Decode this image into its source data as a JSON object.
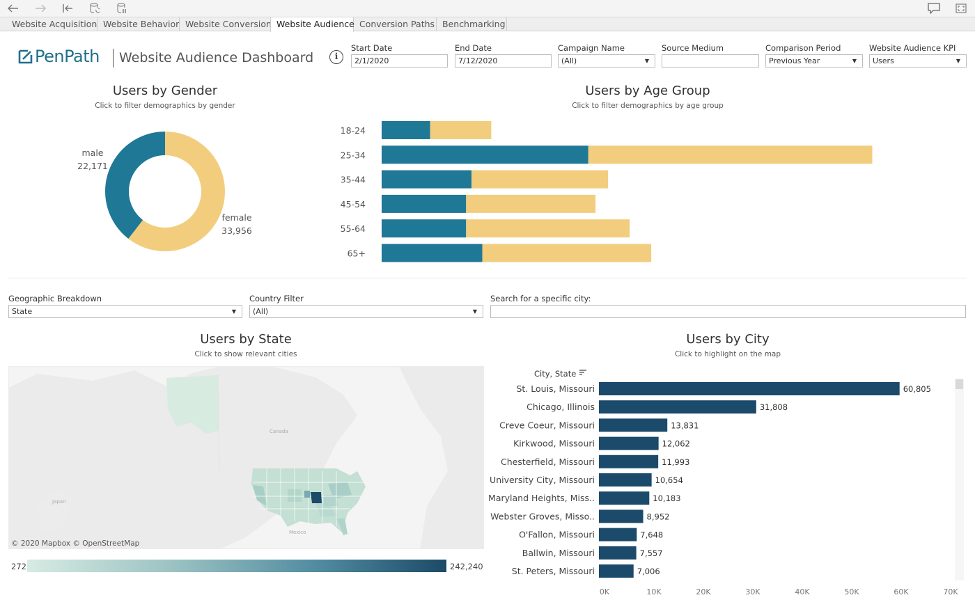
{
  "toolbar": {
    "back_icon": "back-arrow-icon",
    "forward_icon": "forward-arrow-icon",
    "revert_icon": "revert-icon",
    "refresh_icon": "refresh-data-icon",
    "pause_icon": "pause-updates-icon",
    "comment_icon": "comment-icon",
    "fullscreen_icon": "fullscreen-icon"
  },
  "tabs": [
    {
      "label": "Website Acquisition",
      "active": false
    },
    {
      "label": "Website Behavior",
      "active": false
    },
    {
      "label": "Website Conversion",
      "active": false
    },
    {
      "label": "Website Audience",
      "active": true
    },
    {
      "label": "Conversion Paths",
      "active": false
    },
    {
      "label": "Benchmarking",
      "active": false
    }
  ],
  "header": {
    "logo_text": "PenPath",
    "title": "Website Audience Dashboard"
  },
  "filters": {
    "start_date": {
      "label": "Start Date",
      "value": "2/1/2020"
    },
    "end_date": {
      "label": "End Date",
      "value": "7/12/2020"
    },
    "campaign": {
      "label": "Campaign Name",
      "value": "(All)"
    },
    "source_medium": {
      "label": "Source Medium",
      "value": ""
    },
    "comparison": {
      "label": "Comparison Period",
      "value": "Previous Year"
    },
    "kpi": {
      "label": "Website Audience KPI",
      "value": "Users"
    },
    "geo": {
      "label": "Geographic Breakdown",
      "value": "State"
    },
    "country": {
      "label": "Country Filter",
      "value": "(All)"
    },
    "city_search": {
      "label": "Search for a specific city:",
      "value": ""
    }
  },
  "gender": {
    "title": "Users by Gender",
    "subtitle": "Click to filter demographics by gender"
  },
  "age": {
    "title": "Users by Age Group",
    "subtitle": "Click to filter demographics by age group"
  },
  "state": {
    "title": "Users by State",
    "subtitle": "Click to show relevant cities",
    "map_labels": [
      "Canada",
      "Japan",
      "Mexico"
    ],
    "credit": "© 2020 Mapbox  © OpenStreetMap",
    "legend_min": "272",
    "legend_max": "242,240"
  },
  "city": {
    "title": "Users by City",
    "subtitle": "Click to highlight on the map",
    "column_header": "City, State",
    "sort_icon": "sort-icon"
  },
  "colors": {
    "teal": "#1f7896",
    "gold": "#f2cd7e",
    "navy": "#1b4a6b",
    "brand": "#1f6f8b"
  },
  "chart_data": [
    {
      "type": "pie",
      "title": "Users by Gender",
      "categories": [
        "male",
        "female"
      ],
      "values": [
        22171,
        33956
      ],
      "value_labels": [
        "22,171",
        "33,956"
      ]
    },
    {
      "type": "bar",
      "orientation": "horizontal",
      "stacked": true,
      "title": "Users by Age Group",
      "categories": [
        "18-24",
        "25-34",
        "35-44",
        "45-54",
        "55-64",
        "65+"
      ],
      "series": [
        {
          "name": "male",
          "values": [
            2700,
            11500,
            5000,
            4700,
            4700,
            5600
          ]
        },
        {
          "name": "female",
          "values": [
            3400,
            15800,
            7600,
            7200,
            9100,
            9400
          ]
        }
      ],
      "xlim": [
        0,
        31000
      ]
    },
    {
      "type": "bar",
      "orientation": "horizontal",
      "title": "Users by City",
      "ylabel": "City, State",
      "categories": [
        "St. Louis, Missouri",
        "Chicago, Illinois",
        "Creve Coeur, Missouri",
        "Kirkwood, Missouri",
        "Chesterfield, Missouri",
        "University City, Missouri",
        "Maryland Heights, Miss..",
        "Webster Groves, Misso..",
        "O'Fallon, Missouri",
        "Ballwin, Missouri",
        "St. Peters, Missouri"
      ],
      "values": [
        60805,
        31808,
        13831,
        12062,
        11993,
        10654,
        10183,
        8952,
        7648,
        7557,
        7006
      ],
      "value_labels": [
        "60,805",
        "31,808",
        "13,831",
        "12,062",
        "11,993",
        "10,654",
        "10,183",
        "8,952",
        "7,648",
        "7,557",
        "7,006"
      ],
      "xlim": [
        0,
        70000
      ],
      "xticks": [
        "0K",
        "10K",
        "20K",
        "30K",
        "40K",
        "50K",
        "60K",
        "70K"
      ]
    }
  ]
}
